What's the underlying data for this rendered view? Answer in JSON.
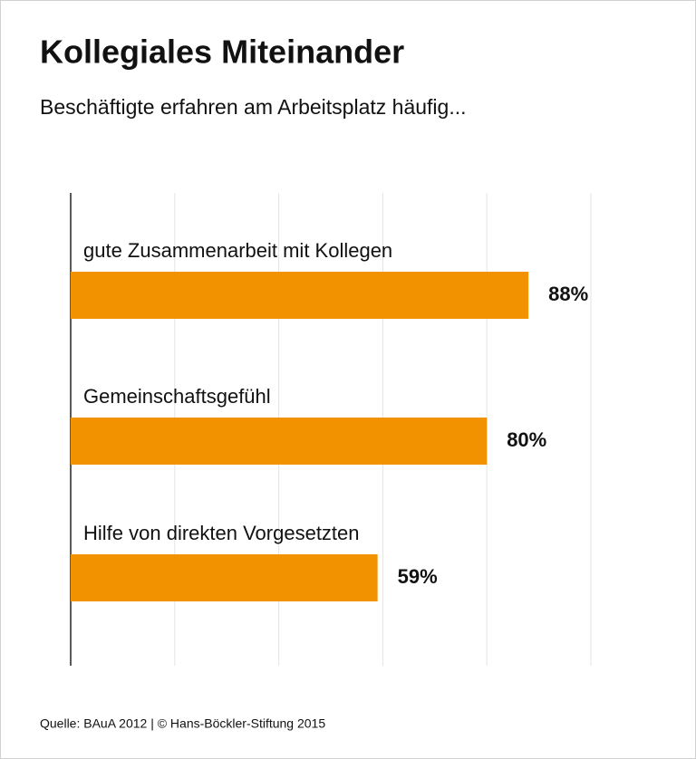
{
  "chart_data": {
    "type": "hbar",
    "title": "Kollegiales Miteinander",
    "subtitle": "Beschäftigte erfahren am Arbeitsplatz häufig...",
    "categories": [
      "gute Zusammenarbeit mit Kollegen",
      "Gemeinschaftsgefühl",
      "Hilfe von direkten Vorgesetzten"
    ],
    "values": [
      88,
      80,
      59
    ],
    "value_labels": [
      "88%",
      "80%",
      "59%"
    ],
    "color": "#f39200",
    "xlim": [
      0,
      100
    ],
    "xticks": [
      0,
      20,
      40,
      60,
      80,
      100
    ],
    "grid": true,
    "source": "Quelle: BAuA 2012 | © Hans-Böckler-Stiftung 2015"
  }
}
